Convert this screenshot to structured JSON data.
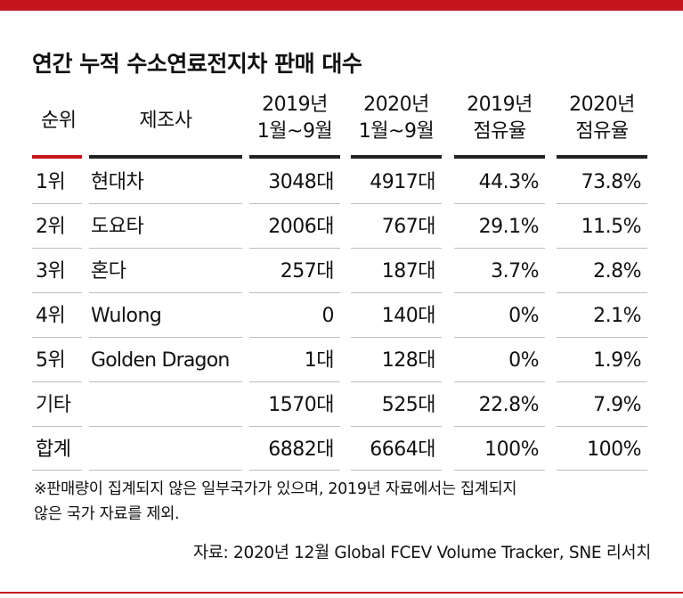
{
  "title": "연간 누적 수소연료전지차 판매 대수",
  "colors": {
    "accent": "#c4161c",
    "header_rule": "#222222",
    "row_rule": "#bdbdbd"
  },
  "headers": {
    "rank": "순위",
    "maker": "제조사",
    "sales_2019": [
      "2019년",
      "1월~9월"
    ],
    "sales_2020": [
      "2020년",
      "1월~9월"
    ],
    "share_2019": [
      "2019년",
      "점유율"
    ],
    "share_2020": [
      "2020년",
      "점유율"
    ]
  },
  "rows": [
    {
      "rank": "1위",
      "maker": "현대차",
      "sales_2019": "3048대",
      "sales_2020": "4917대",
      "share_2019": "44.3%",
      "share_2020": "73.8%"
    },
    {
      "rank": "2위",
      "maker": "도요타",
      "sales_2019": "2006대",
      "sales_2020": "767대",
      "share_2019": "29.1%",
      "share_2020": "11.5%"
    },
    {
      "rank": "3위",
      "maker": "혼다",
      "sales_2019": "257대",
      "sales_2020": "187대",
      "share_2019": "3.7%",
      "share_2020": "2.8%"
    },
    {
      "rank": "4위",
      "maker": "Wulong",
      "sales_2019": "0",
      "sales_2020": "140대",
      "share_2019": "0%",
      "share_2020": "2.1%"
    },
    {
      "rank": "5위",
      "maker": "Golden Dragon",
      "sales_2019": "1대",
      "sales_2020": "128대",
      "share_2019": "0%",
      "share_2020": "1.9%"
    },
    {
      "rank": "기타",
      "maker": "",
      "sales_2019": "1570대",
      "sales_2020": "525대",
      "share_2019": "22.8%",
      "share_2020": "7.9%"
    },
    {
      "rank": "합계",
      "maker": "",
      "sales_2019": "6882대",
      "sales_2020": "6664대",
      "share_2019": "100%",
      "share_2020": "100%"
    }
  ],
  "note": [
    "※판매량이 집계되지 않은 일부국가가 있으며, 2019년 자료에서는 집계되지",
    "않은 국가 자료를 제외."
  ],
  "source": "자료: 2020년 12월 Global FCEV Volume Tracker, SNE 리서치"
}
